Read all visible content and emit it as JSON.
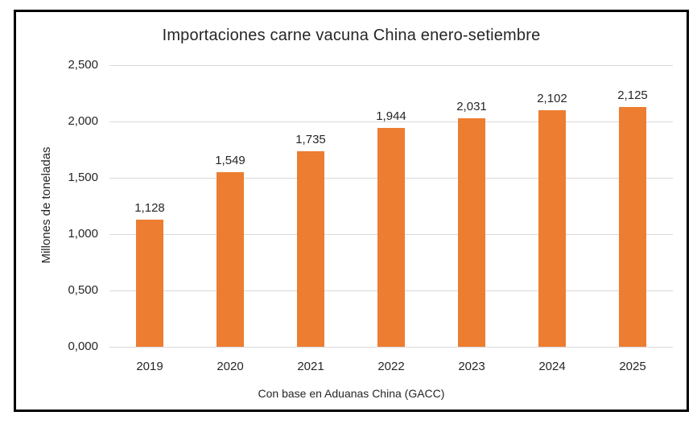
{
  "window": {
    "background": "#ffffff",
    "border_color": "#000000"
  },
  "chart_data": {
    "type": "bar",
    "title": "Importaciones carne vacuna China enero-setiembre",
    "xlabel": "",
    "ylabel": "Millones de toneladas",
    "note": "Con base en Aduanas China (GACC)",
    "categories": [
      "2019",
      "2020",
      "2021",
      "2022",
      "2023",
      "2024",
      "2025"
    ],
    "values": [
      1.128,
      1.549,
      1.735,
      1.944,
      2.031,
      2.102,
      2.125
    ],
    "value_labels": [
      "1,128",
      "1,549",
      "1,735",
      "1,944",
      "2,031",
      "2,102",
      "2,125"
    ],
    "ylim": [
      0,
      2.5
    ],
    "ytick_values": [
      0,
      0.5,
      1.0,
      1.5,
      2.0,
      2.5
    ],
    "ytick_labels": [
      "0,000",
      "0,500",
      "1,000",
      "1,500",
      "2,000",
      "2,500"
    ],
    "grid": true,
    "legend": false,
    "legend_position": "none",
    "bar_color": "#ed7d31",
    "gridline_color": "#d9d9d9",
    "text_color": "#262626"
  }
}
